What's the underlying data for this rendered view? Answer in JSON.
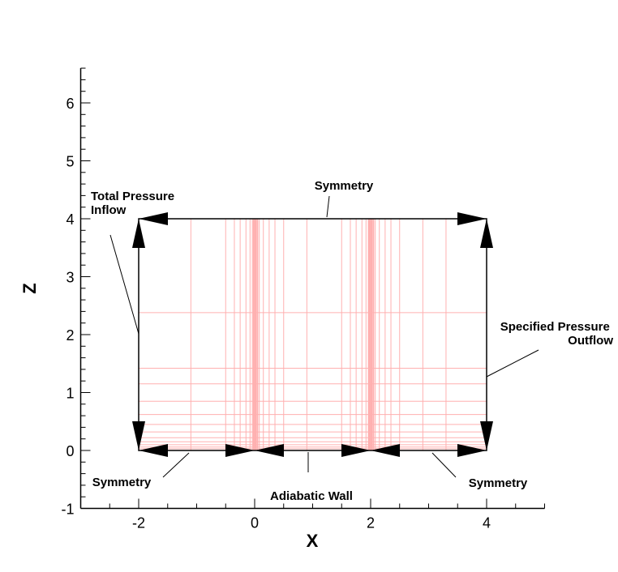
{
  "chart_data": {
    "type": "diagram",
    "xlabel": "X",
    "ylabel": "Z",
    "x_ticks": [
      "-2",
      "0",
      "2",
      "4"
    ],
    "x_tick_values": [
      -2,
      0,
      2,
      4
    ],
    "y_ticks": [
      "-1",
      "0",
      "1",
      "2",
      "3",
      "4",
      "5",
      "6"
    ],
    "y_tick_values": [
      -1,
      0,
      1,
      2,
      3,
      4,
      5,
      6
    ],
    "xlim": [
      -3,
      5
    ],
    "ylim": [
      -1,
      6.6
    ],
    "domain": {
      "x": [
        -2,
        4
      ],
      "z": [
        0,
        4
      ]
    },
    "mesh_color": "#ffb0b0",
    "mesh_x": [
      -1.1,
      -0.5,
      -0.35,
      -0.25,
      -0.15,
      -0.08,
      -0.04,
      0.03,
      0.08,
      0.15,
      0.25,
      0.35,
      0.5,
      0.9,
      1.5,
      1.65,
      1.75,
      1.85,
      1.92,
      1.96,
      2.03,
      2.08,
      2.15,
      2.25,
      2.35,
      2.5,
      2.9,
      3.3
    ],
    "mesh_x_dense": [
      -0.02,
      0.0,
      0.01,
      0.02,
      0.05,
      1.97,
      1.98,
      2.0,
      2.01,
      2.02,
      2.05
    ],
    "mesh_z": [
      0.03,
      0.06,
      0.1,
      0.15,
      0.22,
      0.32,
      0.45,
      0.62,
      0.85,
      1.15,
      1.42,
      2.38
    ],
    "boundaries": [
      {
        "label": "Symmetry",
        "note": "top"
      },
      {
        "label": "Total Pressure\nInflow",
        "note": "left"
      },
      {
        "label": "Specified Pressure\nOutflow",
        "note": "right"
      },
      {
        "label": "Symmetry",
        "note": "bottom-left"
      },
      {
        "label": "Adiabatic Wall",
        "note": "bottom-center"
      },
      {
        "label": "Symmetry",
        "note": "bottom-right"
      }
    ]
  }
}
